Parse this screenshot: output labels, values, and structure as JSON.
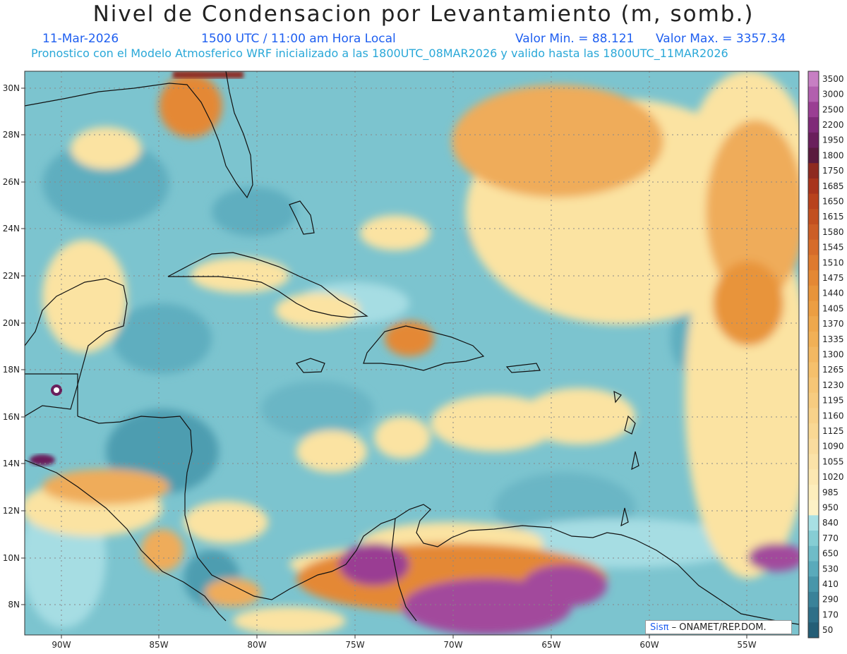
{
  "header": {
    "title": "Nivel de Condensacion por Levantamiento (m, somb.)",
    "date": "11-Mar-2026",
    "time": "1500 UTC / 11:00 am Hora Local",
    "min": "Valor Min. = 88.121",
    "max": "Valor Max. = 3357.34",
    "forecast": "Pronostico con el Modelo Atmosferico WRF inicializado a las 1800UTC_08MAR2026 y valido hasta las  1800UTC_11MAR2026"
  },
  "axes": {
    "lon": [
      "90W",
      "85W",
      "80W",
      "75W",
      "70W",
      "65W",
      "60W",
      "55W"
    ],
    "lat": [
      "30N",
      "28N",
      "26N",
      "24N",
      "22N",
      "20N",
      "18N",
      "16N",
      "14N",
      "12N",
      "10N",
      "8N"
    ]
  },
  "colorbar": {
    "levels": [
      "3500",
      "3000",
      "2500",
      "2200",
      "1950",
      "1800",
      "1750",
      "1685",
      "1650",
      "1615",
      "1580",
      "1545",
      "1510",
      "1475",
      "1440",
      "1405",
      "1370",
      "1335",
      "1300",
      "1265",
      "1230",
      "1195",
      "1160",
      "1125",
      "1090",
      "1055",
      "1020",
      "985",
      "950",
      "840",
      "770",
      "650",
      "530",
      "410",
      "290",
      "170",
      "50"
    ],
    "colors": [
      "#c77fc3",
      "#b25fae",
      "#9a3e93",
      "#7f2a78",
      "#6a1f5c",
      "#5a1a3e",
      "#8e2a20",
      "#a8341c",
      "#b8421c",
      "#c25020",
      "#cc5e26",
      "#d66c2a",
      "#de7a2e",
      "#e48834",
      "#e8943a",
      "#ec9e42",
      "#efa84c",
      "#f1b056",
      "#f3b862",
      "#f5c06c",
      "#f6c676",
      "#f7cc80",
      "#f8d28a",
      "#f9d894",
      "#fadc9e",
      "#fbe2a8",
      "#fce8b2",
      "#fdeebc",
      "#fdf2c6",
      "#a8e0e4",
      "#86cdd4",
      "#6fbcc8",
      "#5aaabb",
      "#4896aa",
      "#3a8299",
      "#2e6f88",
      "#245e76"
    ]
  },
  "credit": {
    "sis": "Sisπ",
    "rest": " – ONAMET/REP.DOM."
  }
}
